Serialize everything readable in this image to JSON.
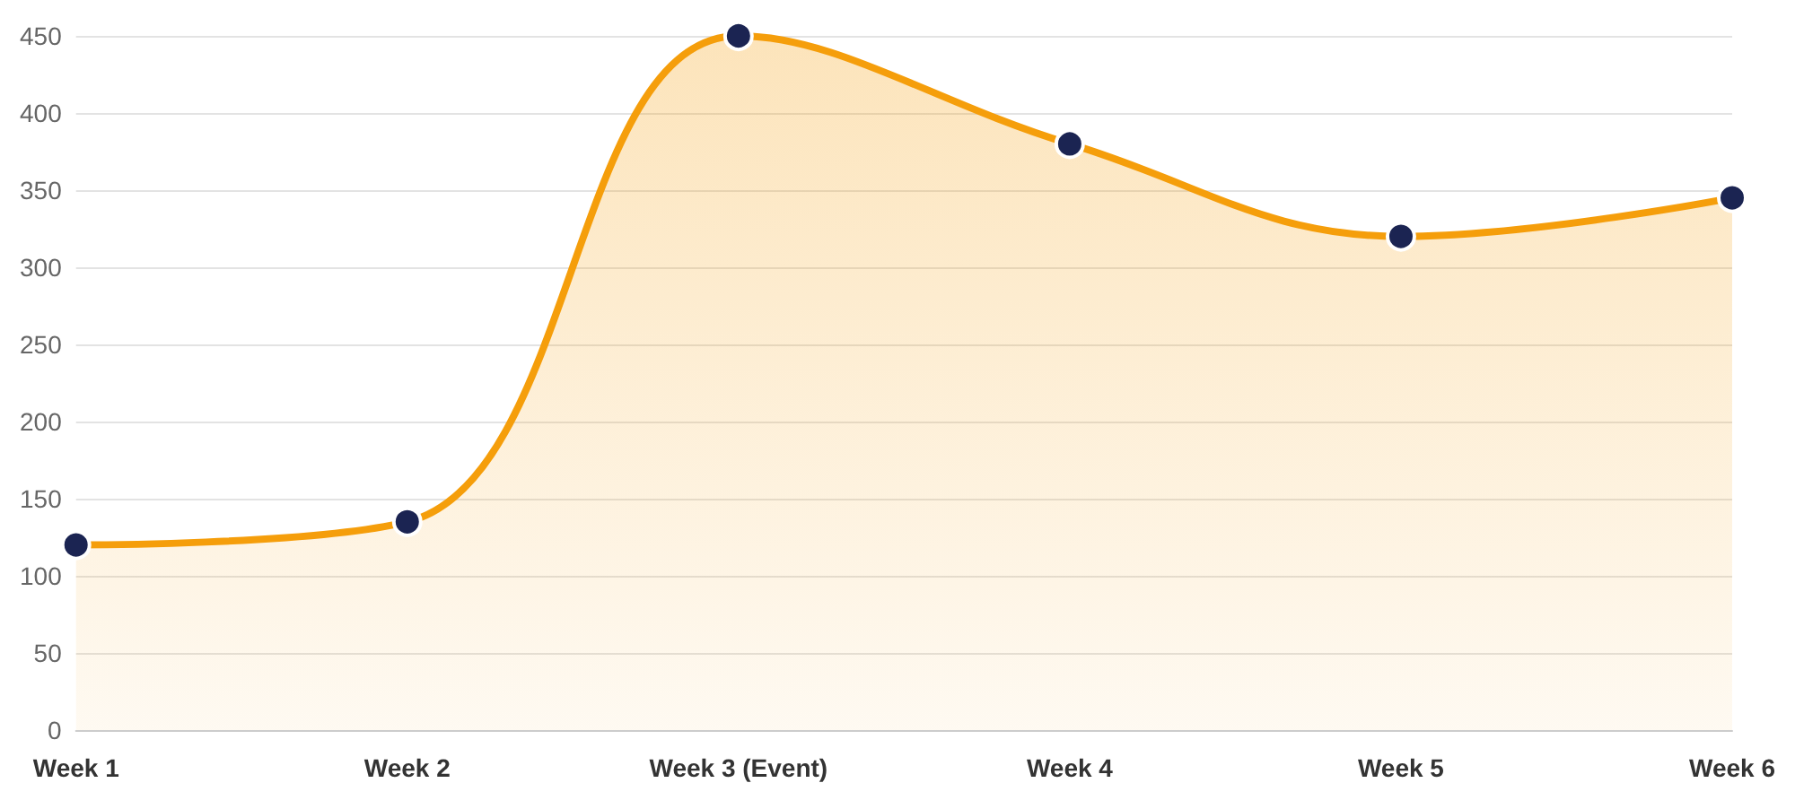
{
  "chart_data": {
    "type": "area",
    "categories": [
      "Week 1",
      "Week 2",
      "Week 3 (Event)",
      "Week 4",
      "Week 5",
      "Week 6"
    ],
    "series": [
      {
        "color": "#f59e0b",
        "values": [
          120,
          135,
          450,
          380,
          320,
          345
        ]
      }
    ],
    "ylim": [
      0,
      450
    ],
    "yticks": [
      0,
      50,
      100,
      150,
      200,
      250,
      300,
      350,
      400,
      450
    ],
    "grid": "y",
    "marker": "circle",
    "line_style": "solid"
  }
}
